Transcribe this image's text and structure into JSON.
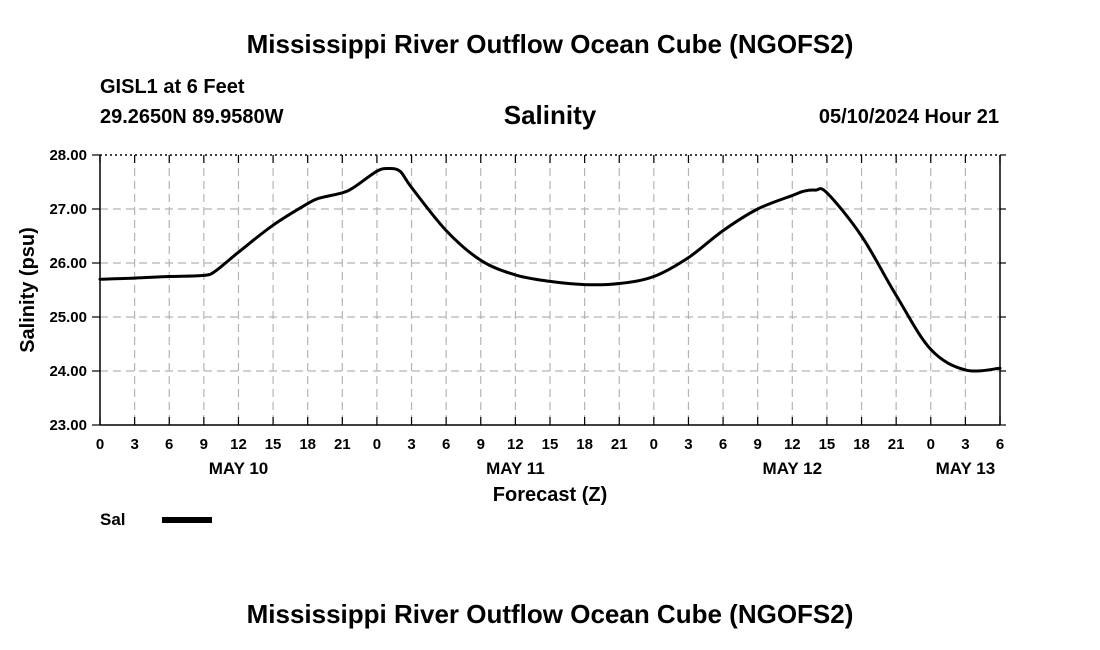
{
  "header": {
    "title": "Mississippi River Outflow Ocean Cube (NGOFS2)",
    "station": "GISL1 at 6 Feet",
    "coordinates": "29.2650N  89.9580W",
    "parameter": "Salinity",
    "datetime": "05/10/2024 Hour 21"
  },
  "footer": {
    "title": "Mississippi River Outflow Ocean Cube (NGOFS2)"
  },
  "legend": {
    "label": "Sal",
    "color": "#000000"
  },
  "chart_data": {
    "type": "line",
    "title": "Salinity",
    "xlabel": "Forecast (Z)",
    "ylabel": "Salinity (psu)",
    "xlim": [
      0,
      78
    ],
    "ylim": [
      23,
      28
    ],
    "grid": true,
    "x_unit": "hours since May 10 00Z",
    "x_tick_labels": [
      "0",
      "3",
      "6",
      "9",
      "12",
      "15",
      "18",
      "21",
      "0",
      "3",
      "6",
      "9",
      "12",
      "15",
      "18",
      "21",
      "0",
      "3",
      "6",
      "9",
      "12",
      "15",
      "18",
      "21",
      "0",
      "3",
      "6"
    ],
    "day_labels": [
      {
        "label": "MAY 10",
        "hour": 12
      },
      {
        "label": "MAY 11",
        "hour": 36
      },
      {
        "label": "MAY 12",
        "hour": 60
      },
      {
        "label": "MAY 13",
        "hour": 75
      }
    ],
    "y_tick_labels": [
      "23.00",
      "24.00",
      "25.00",
      "26.00",
      "27.00",
      "28.00"
    ],
    "series": [
      {
        "name": "Sal",
        "color": "#000000",
        "x": [
          0,
          3,
          6,
          9,
          10,
          12,
          15,
          18,
          19,
          21,
          22,
          24,
          25,
          26,
          27,
          30,
          33,
          36,
          39,
          42,
          45,
          48,
          51,
          54,
          57,
          60,
          61,
          62,
          63,
          66,
          69,
          72,
          75,
          78
        ],
        "y": [
          25.7,
          25.72,
          25.75,
          25.77,
          25.85,
          26.2,
          26.7,
          27.1,
          27.2,
          27.3,
          27.4,
          27.7,
          27.75,
          27.7,
          27.4,
          26.6,
          26.05,
          25.78,
          25.66,
          25.6,
          25.62,
          25.75,
          26.1,
          26.6,
          27.0,
          27.25,
          27.33,
          27.35,
          27.3,
          26.5,
          25.4,
          24.4,
          24.02,
          24.05
        ]
      }
    ]
  }
}
